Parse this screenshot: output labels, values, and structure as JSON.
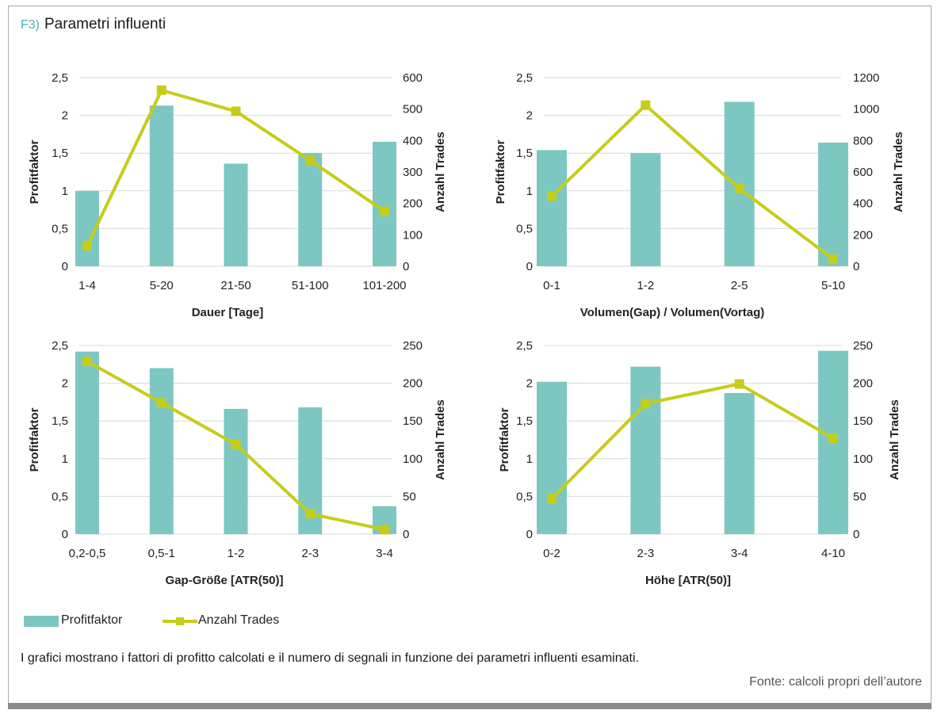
{
  "figure": {
    "tag": "F3)",
    "title": "Parametri influenti",
    "caption": "I grafici mostrano i fattori di profitto calcolati e il numero di segnali in funzione dei parametri influenti esaminati.",
    "source": "Fonte: calcoli propri dell’autore"
  },
  "legend": {
    "bar_label": "Profitfaktor",
    "line_label": "Anzahl Trades"
  },
  "colors": {
    "bar": "#7cc7c2",
    "line": "#c6cc1a",
    "grid": "#d9d9d9",
    "text": "#222222"
  },
  "chart_data": [
    {
      "type": "bar+line",
      "categories": [
        "1-4",
        "5-20",
        "21-50",
        "51-100",
        "101-200"
      ],
      "xlabel": "Dauer [Tage]",
      "ylabel": "Profitfaktor",
      "y2label": "Anzahl Trades",
      "ylim": [
        0,
        2.5
      ],
      "y2lim": [
        0,
        600
      ],
      "yticks": [
        "0",
        "0,5",
        "1",
        "1,5",
        "2",
        "2,5"
      ],
      "y2ticks": [
        "0",
        "100",
        "200",
        "300",
        "400",
        "500",
        "600"
      ],
      "grid": true,
      "series": [
        {
          "name": "Profitfaktor",
          "kind": "bar",
          "values": [
            1.0,
            2.13,
            1.36,
            1.5,
            1.65
          ]
        },
        {
          "name": "Anzahl Trades",
          "kind": "line",
          "values": [
            65,
            560,
            493,
            337,
            175
          ]
        }
      ]
    },
    {
      "type": "bar+line",
      "categories": [
        "0-1",
        "1-2",
        "2-5",
        "5-10"
      ],
      "xlabel": "Volumen(Gap) / Volumen(Vortag)",
      "ylabel": "Profitfaktor",
      "y2label": "Anzahl Trades",
      "ylim": [
        0,
        2.5
      ],
      "y2lim": [
        0,
        1200
      ],
      "yticks": [
        "0",
        "0,5",
        "1",
        "1,5",
        "2",
        "2,5"
      ],
      "y2ticks": [
        "0",
        "200",
        "400",
        "600",
        "800",
        "1000",
        "1200"
      ],
      "grid": true,
      "series": [
        {
          "name": "Profitfaktor",
          "kind": "bar",
          "values": [
            1.54,
            1.5,
            2.18,
            1.64
          ]
        },
        {
          "name": "Anzahl Trades",
          "kind": "line",
          "values": [
            445,
            1025,
            495,
            45
          ]
        }
      ]
    },
    {
      "type": "bar+line",
      "categories": [
        "0,2-0,5",
        "0,5-1",
        "1-2",
        "2-3",
        "3-4"
      ],
      "xlabel": "Gap-Größe [ATR(50)]",
      "ylabel": "Profitfaktor",
      "y2label": "Anzahl Trades",
      "ylim": [
        0,
        2.5
      ],
      "y2lim": [
        0,
        250
      ],
      "yticks": [
        "0",
        "0,5",
        "1",
        "1,5",
        "2",
        "2,5"
      ],
      "y2ticks": [
        "0",
        "50",
        "100",
        "150",
        "200",
        "250"
      ],
      "grid": true,
      "series": [
        {
          "name": "Profitfaktor",
          "kind": "bar",
          "values": [
            2.42,
            2.2,
            1.66,
            1.68,
            0.37
          ]
        },
        {
          "name": "Anzahl Trades",
          "kind": "line",
          "values": [
            229,
            174,
            119,
            27,
            6
          ]
        }
      ]
    },
    {
      "type": "bar+line",
      "categories": [
        "0-2",
        "2-3",
        "3-4",
        "4-10"
      ],
      "xlabel": "Höhe [ATR(50)]",
      "ylabel": "Profitfaktor",
      "y2label": "Anzahl Trades",
      "ylim": [
        0,
        2.5
      ],
      "y2lim": [
        0,
        250
      ],
      "yticks": [
        "0",
        "0,5",
        "1",
        "1,5",
        "2",
        "2,5"
      ],
      "y2ticks": [
        "0",
        "50",
        "100",
        "150",
        "200",
        "250"
      ],
      "grid": true,
      "series": [
        {
          "name": "Profitfaktor",
          "kind": "bar",
          "values": [
            2.02,
            2.22,
            1.87,
            2.43
          ]
        },
        {
          "name": "Anzahl Trades",
          "kind": "line",
          "values": [
            47,
            173,
            199,
            127
          ]
        }
      ]
    }
  ]
}
